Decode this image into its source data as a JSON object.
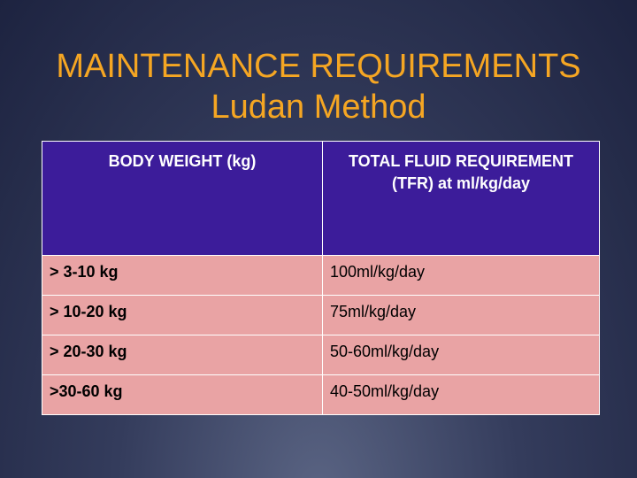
{
  "title": {
    "line1": "MAINTENANCE REQUIREMENTS",
    "line2": "Ludan Method"
  },
  "table": {
    "header": [
      "BODY WEIGHT (kg)",
      "TOTAL FLUID REQUIREMENT (TFR) at ml/kg/day"
    ],
    "rows": [
      [
        "> 3-10 kg",
        "100ml/kg/day"
      ],
      [
        "> 10-20 kg",
        "75ml/kg/day"
      ],
      [
        "> 20-30 kg",
        "50-60ml/kg/day"
      ],
      [
        ">30-60 kg",
        "40-50ml/kg/day"
      ]
    ]
  }
}
